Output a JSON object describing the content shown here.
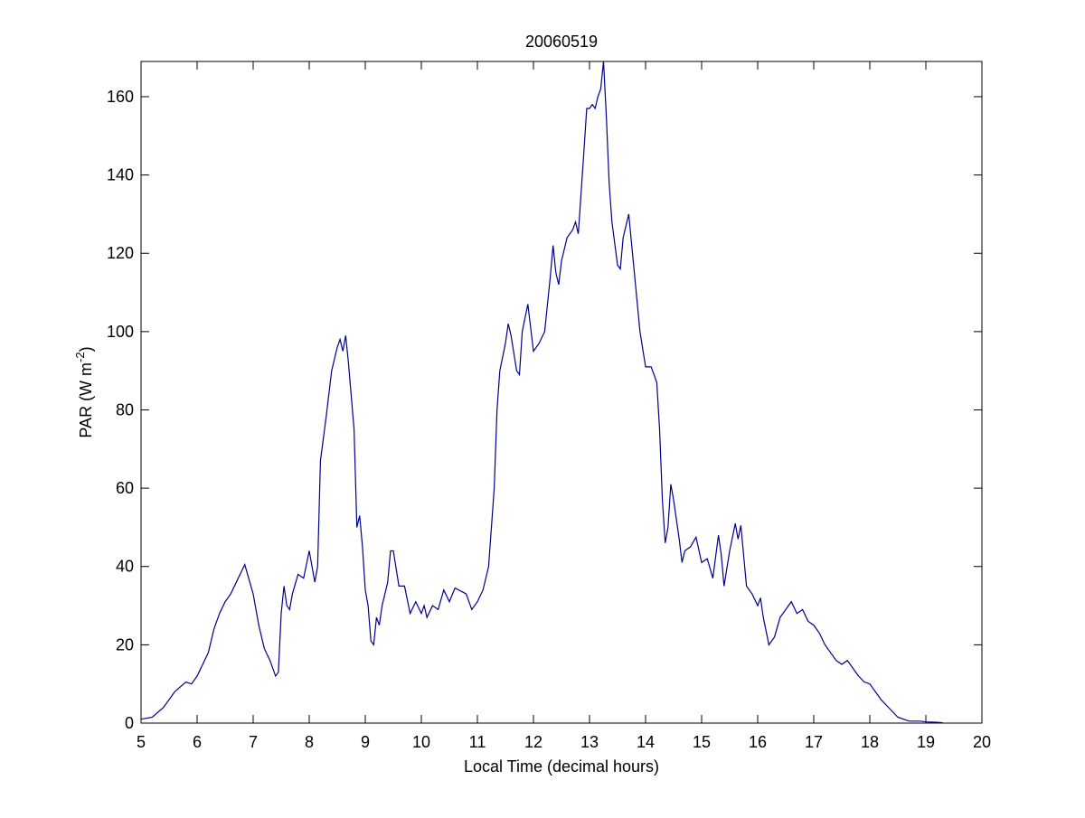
{
  "chart_data": {
    "type": "line",
    "title": "20060519",
    "xlabel": "Local Time (decimal hours)",
    "ylabel": [
      "PAR (W m",
      "-2",
      ")"
    ],
    "xlim": [
      5,
      20
    ],
    "ylim": [
      0,
      169
    ],
    "xticks": [
      5,
      6,
      7,
      8,
      9,
      10,
      11,
      12,
      13,
      14,
      15,
      16,
      17,
      18,
      19,
      20
    ],
    "yticks": [
      0,
      20,
      40,
      60,
      80,
      100,
      120,
      140,
      160
    ],
    "grid": false,
    "series": [
      {
        "color": "#00008b",
        "x": [
          5.0,
          5.2,
          5.4,
          5.6,
          5.8,
          5.9,
          6.0,
          6.2,
          6.3,
          6.4,
          6.5,
          6.6,
          6.7,
          6.8,
          6.85,
          6.9,
          7.0,
          7.1,
          7.2,
          7.3,
          7.4,
          7.45,
          7.5,
          7.55,
          7.6,
          7.65,
          7.7,
          7.8,
          7.9,
          8.0,
          8.1,
          8.15,
          8.2,
          8.3,
          8.4,
          8.5,
          8.55,
          8.6,
          8.65,
          8.7,
          8.8,
          8.85,
          8.9,
          8.95,
          9.0,
          9.05,
          9.1,
          9.15,
          9.2,
          9.25,
          9.3,
          9.4,
          9.45,
          9.5,
          9.6,
          9.7,
          9.8,
          9.9,
          10.0,
          10.05,
          10.1,
          10.2,
          10.3,
          10.4,
          10.5,
          10.6,
          10.8,
          10.9,
          11.0,
          11.1,
          11.2,
          11.3,
          11.35,
          11.4,
          11.5,
          11.55,
          11.6,
          11.7,
          11.75,
          11.8,
          11.9,
          12.0,
          12.1,
          12.2,
          12.3,
          12.35,
          12.4,
          12.45,
          12.5,
          12.6,
          12.7,
          12.75,
          12.8,
          12.9,
          12.95,
          13.0,
          13.05,
          13.1,
          13.15,
          13.2,
          13.25,
          13.3,
          13.35,
          13.4,
          13.5,
          13.55,
          13.6,
          13.7,
          13.8,
          13.9,
          14.0,
          14.1,
          14.2,
          14.25,
          14.3,
          14.35,
          14.4,
          14.45,
          14.5,
          14.6,
          14.65,
          14.7,
          14.8,
          14.9,
          15.0,
          15.1,
          15.2,
          15.3,
          15.35,
          15.4,
          15.5,
          15.6,
          15.65,
          15.7,
          15.8,
          15.9,
          16.0,
          16.05,
          16.1,
          16.2,
          16.3,
          16.4,
          16.5,
          16.6,
          16.7,
          16.8,
          16.9,
          17.0,
          17.1,
          17.2,
          17.3,
          17.4,
          17.5,
          17.6,
          17.7,
          17.8,
          17.9,
          18.0,
          18.2,
          18.4,
          18.5,
          18.7,
          18.9,
          19.0,
          19.2,
          19.3
        ],
        "values": [
          1,
          1.5,
          4,
          8,
          10.5,
          10,
          12,
          18,
          24,
          28,
          31,
          33,
          36,
          39,
          40.5,
          38,
          33,
          25,
          19,
          16,
          12,
          13,
          28,
          35,
          30,
          29,
          33,
          38,
          37,
          44,
          36,
          40,
          67,
          78,
          90,
          96,
          98,
          95,
          99,
          92,
          75,
          50,
          53,
          45,
          34,
          30,
          21,
          20,
          27,
          25,
          30,
          36,
          44,
          44,
          35,
          35,
          28,
          31,
          28,
          30,
          27,
          30,
          29,
          34,
          31,
          34.5,
          33,
          29,
          31,
          34,
          40,
          60,
          80,
          90,
          97,
          102,
          99,
          90,
          89,
          100,
          107,
          95,
          97,
          100,
          114,
          122,
          115,
          112,
          118,
          124,
          126,
          128,
          125,
          146,
          157,
          157,
          158,
          157,
          160,
          162,
          169,
          155,
          138,
          128,
          117,
          116,
          124,
          130,
          115,
          100,
          91,
          91,
          87,
          75,
          57,
          46,
          50,
          61,
          57,
          47,
          41,
          44,
          45,
          47.5,
          41,
          42,
          37,
          48,
          43,
          35,
          44,
          51,
          47,
          50.5,
          35,
          33,
          30,
          32,
          27,
          20,
          22,
          27,
          29,
          31,
          28,
          29,
          26,
          25,
          23,
          20,
          18,
          16,
          15,
          16,
          14,
          12,
          10.5,
          10,
          6,
          3,
          1.5,
          0.5,
          0.5,
          0.3,
          0.2,
          0.1
        ]
      }
    ]
  }
}
